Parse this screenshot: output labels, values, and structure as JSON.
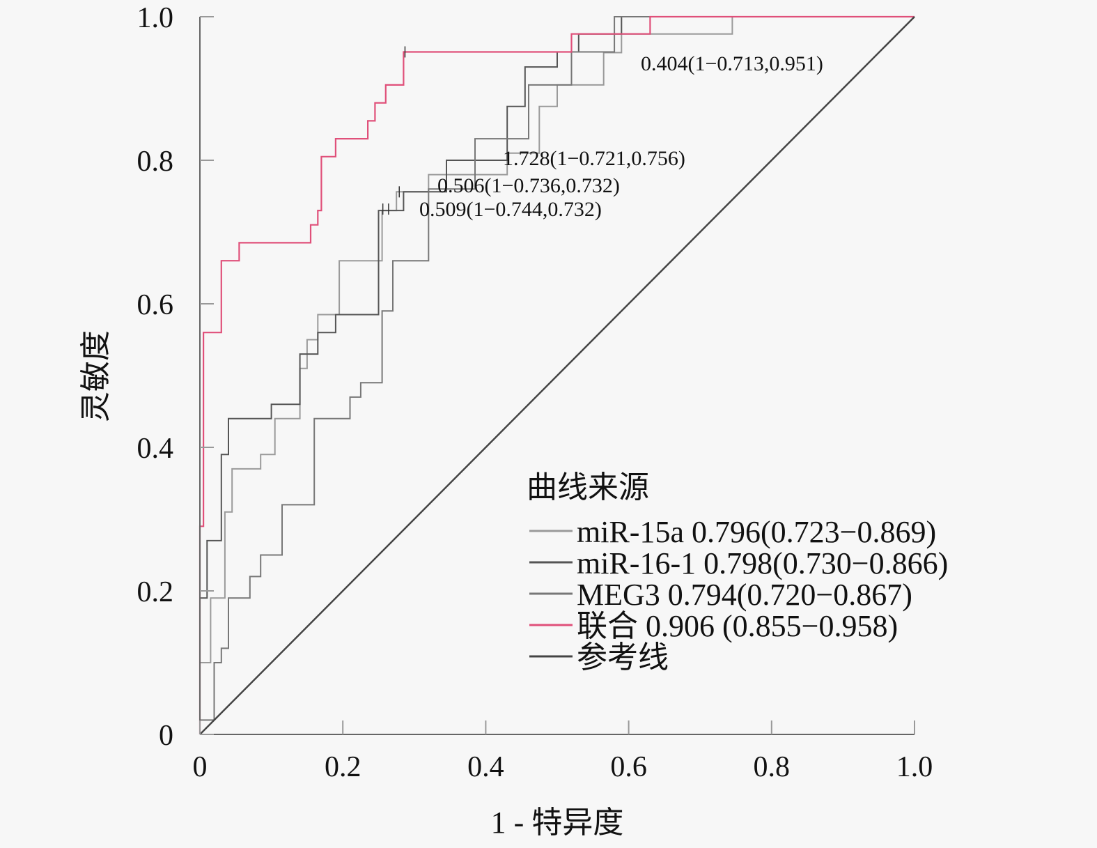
{
  "chart_data": {
    "type": "line",
    "title": "",
    "xlabel": "1 - 特异度",
    "ylabel": "灵敏度",
    "xlim": [
      0,
      1.0
    ],
    "ylim": [
      0,
      1.0
    ],
    "x_ticks": [
      "0",
      "0.2",
      "0.4",
      "0.6",
      "0.8",
      "1.0"
    ],
    "x_tick_values": [
      0,
      0.2,
      0.4,
      0.6,
      0.8,
      1.0
    ],
    "y_ticks": [
      "0",
      "0.2",
      "0.4",
      "0.6",
      "0.8",
      "1.0"
    ],
    "y_tick_values": [
      0,
      0.2,
      0.4,
      0.6,
      0.8,
      1.0
    ],
    "grid": false,
    "legend": {
      "title": "曲线来源",
      "placement": "bottom-right",
      "entries": [
        {
          "label": "miR-15a 0.796(0.723−0.869)",
          "color": "#9a9a9a"
        },
        {
          "label": "miR-16-1 0.798(0.730−0.866)",
          "color": "#555555"
        },
        {
          "label": "MEG3 0.794(0.720−0.867)",
          "color": "#777777"
        },
        {
          "label": "联合 0.906 (0.855−0.958)",
          "color": "#e0507a"
        },
        {
          "label": "参考线",
          "color": "#444444"
        }
      ]
    },
    "annotations": [
      {
        "text": "0.404(1−0.713,0.951)",
        "x": 0.287,
        "y": 0.951
      },
      {
        "text": "1.728(1−0.721,0.756)",
        "x": 0.279,
        "y": 0.756
      },
      {
        "text": "0.506(1−0.736,0.732)",
        "x": 0.264,
        "y": 0.732
      },
      {
        "text": "0.509(1−0.744,0.732)",
        "x": 0.256,
        "y": 0.732
      }
    ],
    "series": [
      {
        "name": "miR-15a",
        "auc": 0.796,
        "ci": [
          0.723,
          0.869
        ],
        "color": "#9a9a9a",
        "x": [
          0,
          0,
          0.015,
          0.015,
          0.035,
          0.035,
          0.045,
          0.045,
          0.085,
          0.085,
          0.105,
          0.105,
          0.14,
          0.14,
          0.15,
          0.15,
          0.165,
          0.165,
          0.195,
          0.195,
          0.255,
          0.255,
          0.275,
          0.275,
          0.32,
          0.32,
          0.43,
          0.43,
          0.475,
          0.475,
          0.5,
          0.5,
          0.565,
          0.565,
          0.59,
          0.59,
          0.745,
          0.745,
          1.0
        ],
        "y": [
          0,
          0.1,
          0.1,
          0.19,
          0.19,
          0.31,
          0.31,
          0.37,
          0.37,
          0.39,
          0.39,
          0.44,
          0.44,
          0.51,
          0.51,
          0.55,
          0.55,
          0.585,
          0.585,
          0.66,
          0.66,
          0.73,
          0.73,
          0.756,
          0.756,
          0.78,
          0.78,
          0.81,
          0.81,
          0.875,
          0.875,
          0.905,
          0.905,
          0.95,
          0.95,
          0.976,
          0.976,
          1.0,
          1.0
        ]
      },
      {
        "name": "miR-16-1",
        "auc": 0.798,
        "ci": [
          0.73,
          0.866
        ],
        "color": "#555555",
        "x": [
          0,
          0,
          0.01,
          0.01,
          0.03,
          0.03,
          0.04,
          0.04,
          0.06,
          0.06,
          0.1,
          0.1,
          0.14,
          0.14,
          0.165,
          0.165,
          0.19,
          0.19,
          0.25,
          0.25,
          0.285,
          0.285,
          0.345,
          0.345,
          0.43,
          0.43,
          0.455,
          0.455,
          0.5,
          0.5,
          0.53,
          0.53,
          0.59,
          0.59,
          1.0
        ],
        "y": [
          0,
          0.19,
          0.19,
          0.27,
          0.27,
          0.39,
          0.39,
          0.44,
          0.44,
          0.44,
          0.44,
          0.46,
          0.46,
          0.53,
          0.53,
          0.56,
          0.56,
          0.585,
          0.585,
          0.73,
          0.73,
          0.756,
          0.756,
          0.8,
          0.8,
          0.875,
          0.875,
          0.93,
          0.93,
          0.951,
          0.951,
          0.976,
          0.976,
          1.0,
          1.0
        ]
      },
      {
        "name": "MEG3",
        "auc": 0.794,
        "ci": [
          0.72,
          0.867
        ],
        "color": "#777777",
        "x": [
          0,
          0,
          0.02,
          0.02,
          0.03,
          0.03,
          0.04,
          0.04,
          0.07,
          0.07,
          0.085,
          0.085,
          0.115,
          0.115,
          0.16,
          0.16,
          0.21,
          0.21,
          0.225,
          0.225,
          0.255,
          0.255,
          0.27,
          0.27,
          0.32,
          0.32,
          0.385,
          0.385,
          0.46,
          0.46,
          0.52,
          0.52,
          0.58,
          0.58,
          1.0
        ],
        "y": [
          0,
          0.02,
          0.02,
          0.1,
          0.1,
          0.12,
          0.12,
          0.19,
          0.19,
          0.22,
          0.22,
          0.25,
          0.25,
          0.32,
          0.32,
          0.44,
          0.44,
          0.47,
          0.47,
          0.49,
          0.49,
          0.59,
          0.59,
          0.66,
          0.66,
          0.76,
          0.76,
          0.83,
          0.83,
          0.905,
          0.905,
          0.951,
          0.951,
          1.0,
          1.0
        ]
      },
      {
        "name": "联合",
        "auc": 0.906,
        "ci": [
          0.855,
          0.958
        ],
        "color": "#e0507a",
        "x": [
          0,
          0,
          0.005,
          0.005,
          0.03,
          0.03,
          0.055,
          0.055,
          0.155,
          0.155,
          0.165,
          0.165,
          0.17,
          0.17,
          0.19,
          0.19,
          0.235,
          0.235,
          0.245,
          0.245,
          0.26,
          0.26,
          0.285,
          0.285,
          0.52,
          0.52,
          0.63,
          0.63,
          1.0
        ],
        "y": [
          0,
          0.29,
          0.29,
          0.56,
          0.56,
          0.66,
          0.66,
          0.685,
          0.685,
          0.71,
          0.71,
          0.73,
          0.73,
          0.805,
          0.805,
          0.83,
          0.83,
          0.855,
          0.855,
          0.88,
          0.88,
          0.905,
          0.905,
          0.951,
          0.951,
          0.976,
          0.976,
          1.0,
          1.0
        ]
      },
      {
        "name": "参考线",
        "color": "#444444",
        "x": [
          0,
          1.0
        ],
        "y": [
          0,
          1.0
        ]
      }
    ]
  }
}
